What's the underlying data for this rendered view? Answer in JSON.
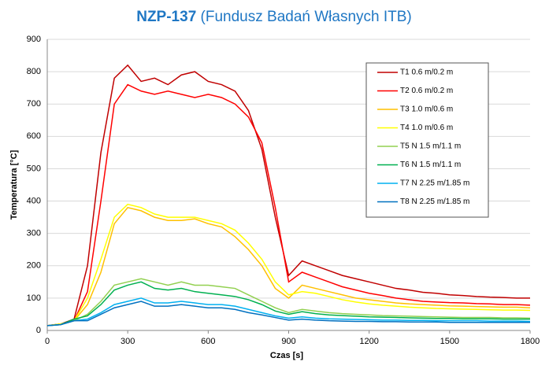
{
  "chart_data": {
    "type": "line",
    "title": "NZP-137",
    "subtitle": "(Fundusz Badań Własnych ITB)",
    "x_label": "Czas [s]",
    "y_label": "Temperatura [°C]",
    "x": [
      0,
      50,
      100,
      150,
      200,
      250,
      300,
      350,
      400,
      450,
      500,
      550,
      600,
      650,
      700,
      750,
      800,
      850,
      900,
      950,
      1000,
      1050,
      1100,
      1150,
      1200,
      1250,
      1300,
      1350,
      1400,
      1450,
      1500,
      1550,
      1600,
      1650,
      1700,
      1750,
      1800
    ],
    "xlim": [
      0,
      1800
    ],
    "xticks": [
      0,
      300,
      600,
      900,
      1200,
      1500,
      1800
    ],
    "ylim": [
      0,
      900
    ],
    "yticks": [
      0,
      100,
      200,
      300,
      400,
      500,
      600,
      700,
      800,
      900
    ],
    "grid": true,
    "legend": "upper right",
    "series": [
      {
        "name": "T1 0.6 m/0.2 m",
        "color": "#c00000",
        "values": [
          15,
          20,
          35,
          200,
          550,
          780,
          820,
          770,
          780,
          760,
          790,
          800,
          770,
          760,
          740,
          680,
          560,
          350,
          170,
          215,
          200,
          185,
          170,
          160,
          150,
          140,
          130,
          125,
          118,
          115,
          110,
          108,
          105,
          103,
          102,
          100,
          100
        ]
      },
      {
        "name": "T2 0.6 m/0.2 m",
        "color": "#ff0000",
        "values": [
          15,
          20,
          30,
          120,
          400,
          700,
          760,
          740,
          730,
          740,
          730,
          720,
          730,
          720,
          700,
          660,
          580,
          380,
          150,
          180,
          165,
          150,
          135,
          125,
          115,
          108,
          100,
          95,
          90,
          88,
          86,
          85,
          83,
          82,
          80,
          80,
          78
        ]
      },
      {
        "name": "T3 1.0 m/0.6 m",
        "color": "#ffc000",
        "values": [
          15,
          20,
          30,
          80,
          180,
          330,
          380,
          370,
          350,
          340,
          340,
          345,
          330,
          320,
          290,
          250,
          200,
          130,
          100,
          140,
          130,
          120,
          110,
          100,
          95,
          90,
          85,
          82,
          80,
          78,
          76,
          75,
          74,
          73,
          72,
          72,
          70
        ]
      },
      {
        "name": "T4 1.0 m/0.6 m",
        "color": "#ffff00",
        "values": [
          15,
          20,
          30,
          100,
          220,
          350,
          390,
          380,
          360,
          350,
          350,
          350,
          340,
          330,
          310,
          270,
          220,
          150,
          110,
          120,
          115,
          105,
          95,
          88,
          82,
          78,
          75,
          72,
          70,
          68,
          67,
          66,
          65,
          64,
          63,
          63,
          62
        ]
      },
      {
        "name": "T5 N 1.5 m/1.1 m",
        "color": "#92d050",
        "values": [
          15,
          18,
          30,
          50,
          90,
          140,
          150,
          160,
          150,
          140,
          150,
          140,
          140,
          135,
          130,
          110,
          90,
          70,
          55,
          65,
          60,
          55,
          52,
          50,
          48,
          46,
          45,
          44,
          43,
          42,
          41,
          40,
          40,
          40,
          39,
          39,
          38
        ]
      },
      {
        "name": "T6 N 1.5 m/1.1 m",
        "color": "#00b050",
        "values": [
          15,
          18,
          35,
          45,
          80,
          125,
          140,
          150,
          130,
          125,
          130,
          120,
          115,
          110,
          105,
          95,
          80,
          60,
          50,
          58,
          52,
          48,
          46,
          44,
          42,
          41,
          40,
          39,
          38,
          37,
          37,
          36,
          36,
          36,
          35,
          35,
          35
        ]
      },
      {
        "name": "T7 N 2.25 m/1.85 m",
        "color": "#00b0f0",
        "values": [
          15,
          18,
          30,
          35,
          55,
          80,
          90,
          100,
          85,
          85,
          90,
          85,
          80,
          80,
          75,
          65,
          55,
          45,
          38,
          42,
          38,
          36,
          35,
          34,
          33,
          32,
          32,
          31,
          31,
          30,
          30,
          30,
          30,
          29,
          29,
          29,
          28
        ]
      },
      {
        "name": "T8 N 2.25 m/1.85 m",
        "color": "#0070c0",
        "values": [
          15,
          18,
          30,
          30,
          50,
          70,
          80,
          90,
          75,
          75,
          80,
          75,
          70,
          70,
          65,
          55,
          48,
          40,
          32,
          35,
          32,
          30,
          29,
          28,
          28,
          27,
          27,
          26,
          26,
          26,
          25,
          25,
          25,
          25,
          25,
          25,
          25
        ]
      }
    ]
  }
}
